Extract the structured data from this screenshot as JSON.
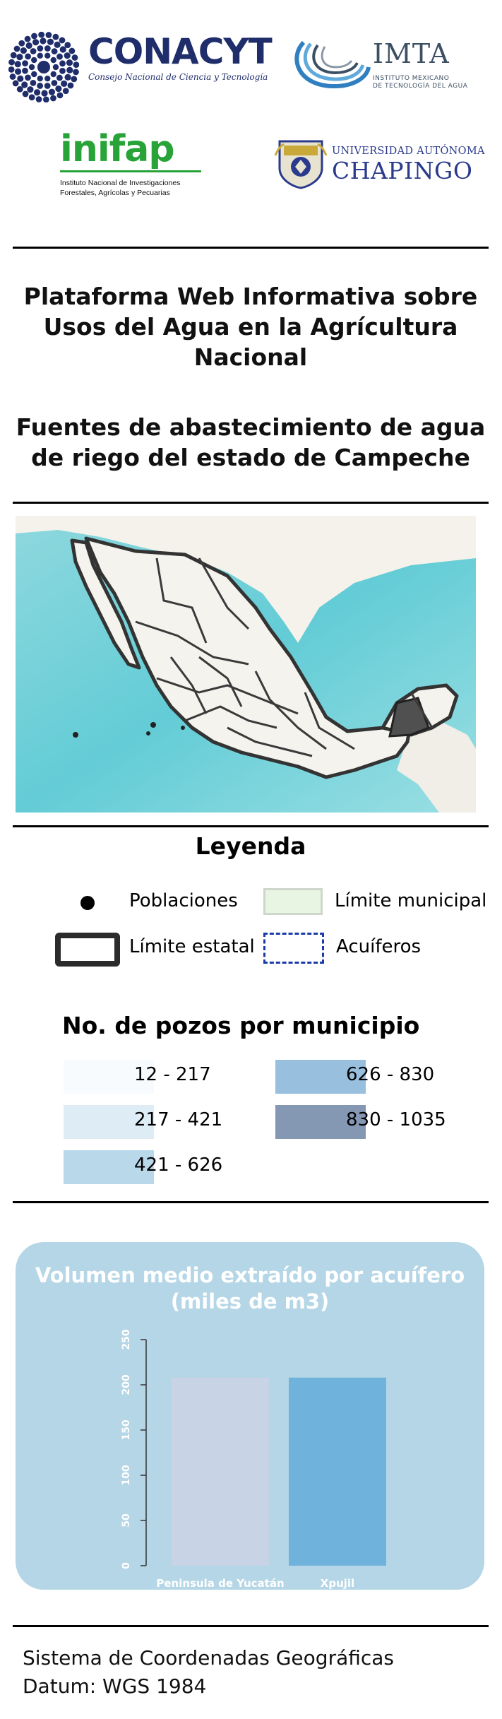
{
  "logos": {
    "conacyt": {
      "name": "CONACYT",
      "subtitle": "Consejo Nacional de Ciencia y Tecnología"
    },
    "imta": {
      "name": "IMTA",
      "subtitle_line1": "INSTITUTO MEXICANO",
      "subtitle_line2": "DE TECNOLOGÍA DEL AGUA"
    },
    "inifap": {
      "name": "inifap",
      "subtitle_line1": "Instituto Nacional de Investigaciones",
      "subtitle_line2": "Forestales, Agrícolas y Pecuarias"
    },
    "chapingo": {
      "line1": "UNIVERSIDAD AUTÓNOMA",
      "line2": "CHAPINGO"
    }
  },
  "title": {
    "line1": "Plataforma Web Informativa sobre",
    "line2": "Usos del Agua en la Agrícultura",
    "line3": "Nacional",
    "line4": "Fuentes de abastecimiento de agua",
    "line5": "de riego del estado de Campeche"
  },
  "legend": {
    "title": "Leyenda",
    "poblaciones": "Poblaciones",
    "limite_municipal": "Límite municipal",
    "limite_estatal": "Límite estatal",
    "acuiferos": "Acuíferos"
  },
  "pozos": {
    "title": "No. de pozos por municipio",
    "classes": [
      {
        "range": "12 - 217",
        "color": "#f7fbfd"
      },
      {
        "range": "217 - 421",
        "color": "#deecf5"
      },
      {
        "range": "421 - 626",
        "color": "#b9d8ea"
      },
      {
        "range": "626 - 830",
        "color": "#99bfdf"
      },
      {
        "range": "830 - 1035",
        "color": "#8497b3"
      }
    ]
  },
  "chart_data": {
    "type": "bar",
    "title_line1": "Volumen medio extraído por acuífero",
    "title_line2": "(miles de m3)",
    "categories": [
      "Peninsula de Yucatán",
      "Xpujil"
    ],
    "values": [
      208,
      208
    ],
    "colors": [
      "#c8d3e6",
      "#6fb2db"
    ],
    "ylim": [
      0,
      250
    ],
    "yticks": [
      "0",
      "50",
      "100",
      "150",
      "200",
      "250"
    ]
  },
  "footer": {
    "line1": "Sistema de Coordenadas Geográficas",
    "line2": "Datum: WGS 1984"
  }
}
